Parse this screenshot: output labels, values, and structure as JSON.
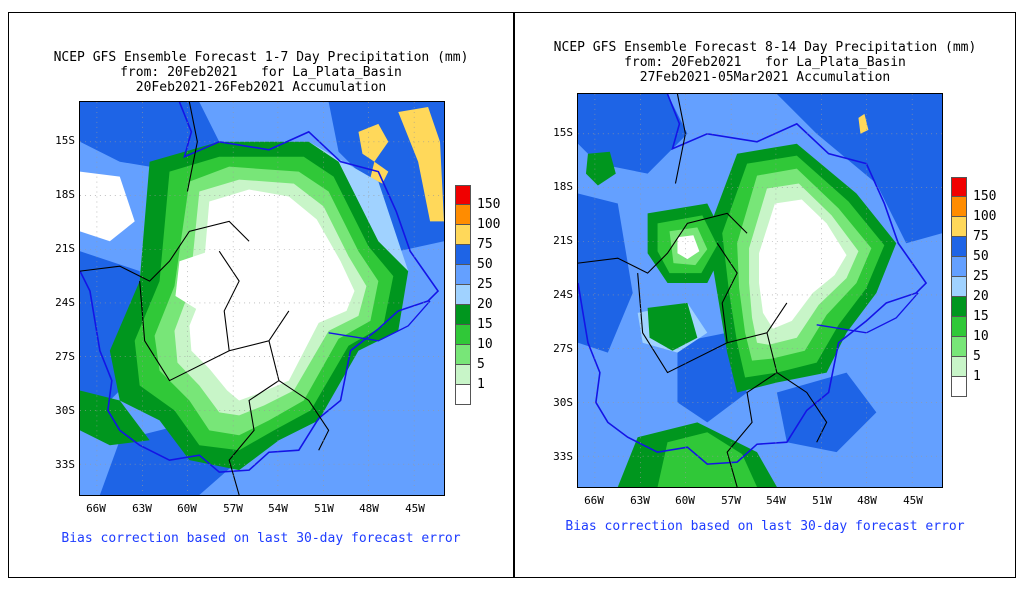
{
  "panels": [
    {
      "title_line1": "NCEP GFS Ensemble Forecast 1-7 Day Precipitation (mm)",
      "title_line2": "from: 20Feb2021   for La_Plata_Basin",
      "title_line3": "20Feb2021-26Feb2021 Accumulation",
      "footer": "Bias correction based on last 30-day forecast error"
    },
    {
      "title_line1": "NCEP GFS Ensemble Forecast 8-14 Day Precipitation (mm)",
      "title_line2": "from: 20Feb2021   for La_Plata_Basin",
      "title_line3": "27Feb2021-05Mar2021 Accumulation",
      "footer": "Bias correction based on last 30-day forecast error"
    }
  ],
  "axes": {
    "lat_labels": [
      "15S",
      "18S",
      "21S",
      "24S",
      "27S",
      "30S",
      "33S"
    ],
    "lon_labels": [
      "66W",
      "63W",
      "60W",
      "57W",
      "54W",
      "51W",
      "48W",
      "45W"
    ]
  },
  "legend": {
    "levels": [
      "150",
      "100",
      "75",
      "50",
      "25",
      "20",
      "15",
      "10",
      "5",
      "1"
    ],
    "colors": [
      "#f00000",
      "#ff8c00",
      "#ffd85a",
      "#1e64e6",
      "#64a0ff",
      "#a0d2ff",
      "#00961e",
      "#30c838",
      "#78e678",
      "#c8f5c8",
      "#ffffff"
    ]
  },
  "colors": {
    "basin_boundary": "#1414e6",
    "political_boundary": "#000000",
    "footer_text": "#1e3cff"
  }
}
